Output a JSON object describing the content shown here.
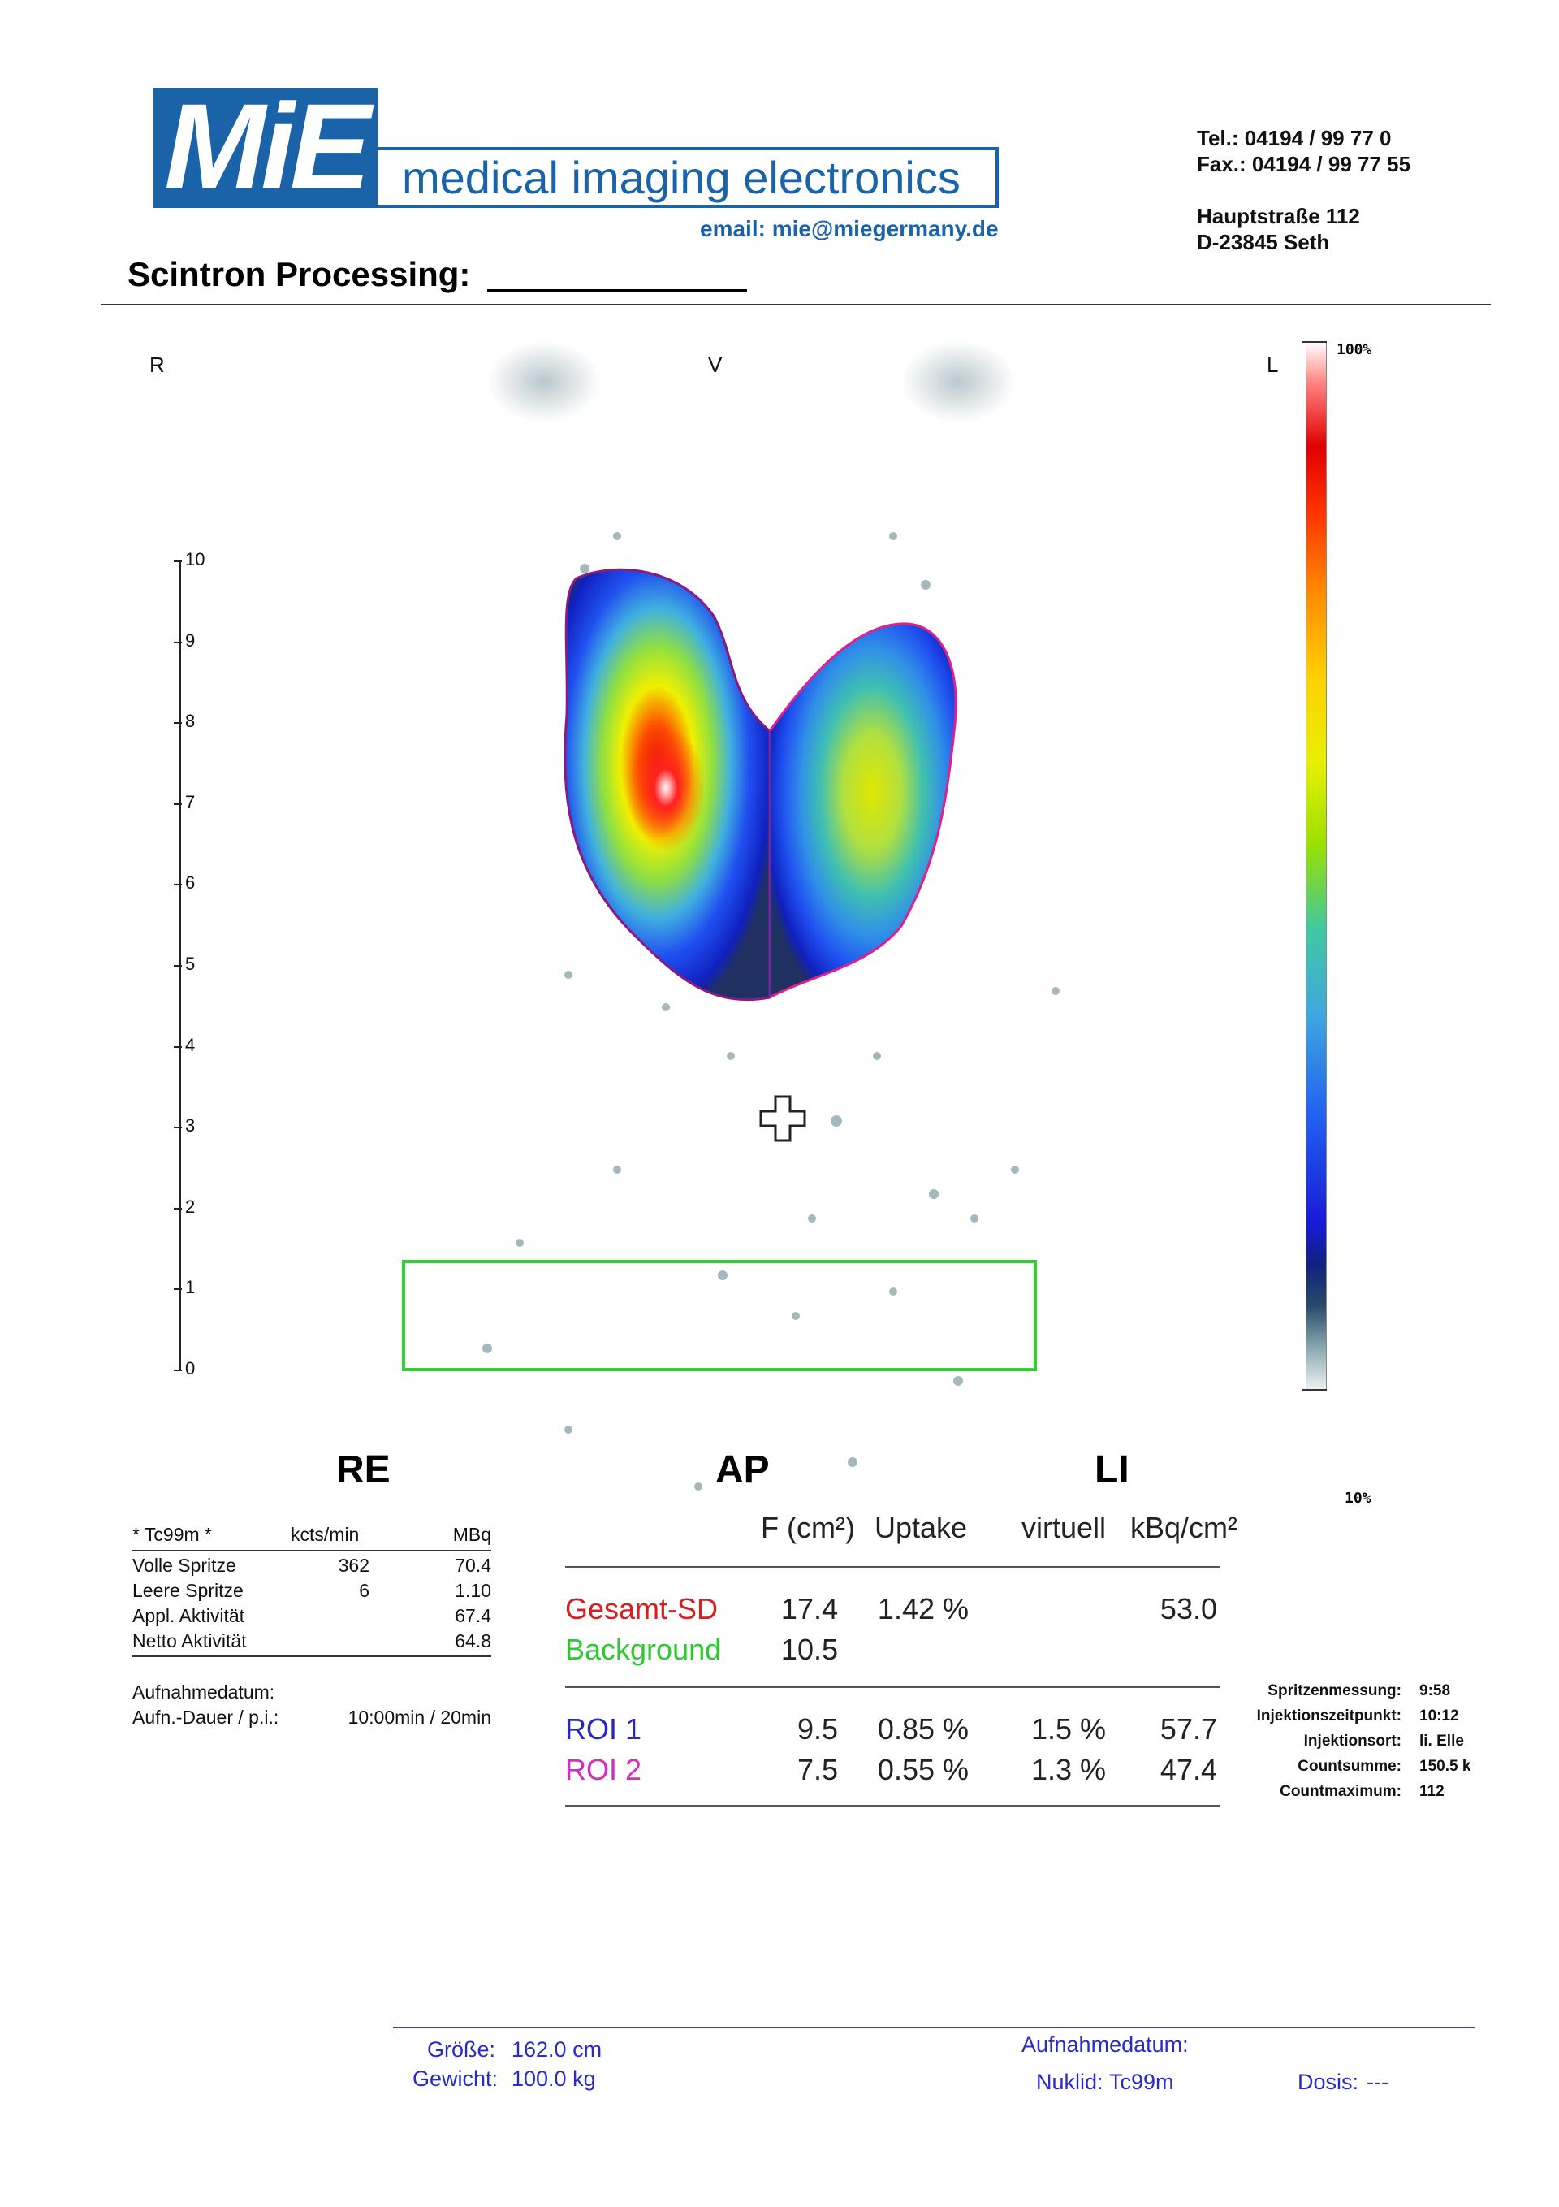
{
  "header": {
    "logo_text": "MiE",
    "tagline": "medical imaging electronics",
    "email": "email: mie@miegermany.de",
    "tel": "Tel.:  04194 / 99 77 0",
    "fax": "Fax.: 04194 / 99 77 55",
    "street": "Hauptstraße 112",
    "city": "D-23845 Seth",
    "title": "Scintron Processing:"
  },
  "image": {
    "orient_right": "R",
    "orient_ventral": "V",
    "orient_left": "L",
    "scale_ticks": [
      "10",
      "9",
      "8",
      "7",
      "6",
      "5",
      "4",
      "3",
      "2",
      "1",
      "0"
    ],
    "colorbar_max": "100%",
    "colorbar_min": "10%"
  },
  "sections": {
    "re": "RE",
    "ap": "AP",
    "li": "LI"
  },
  "left_table": {
    "col_nuclide": "* Tc99m *",
    "col_kcts": "kcts/min",
    "col_mbq": "MBq",
    "rows": [
      {
        "name": "Volle Spritze",
        "kcts": "362",
        "mbq": "70.4"
      },
      {
        "name": "Leere Spritze",
        "kcts": "6",
        "mbq": "1.10"
      },
      {
        "name": "Appl. Aktivität",
        "kcts": "",
        "mbq": "67.4"
      },
      {
        "name": "Netto Aktivität",
        "kcts": "",
        "mbq": "64.8"
      }
    ],
    "aufnahmedatum_label": "Aufnahmedatum:",
    "dauer_label": "Aufn.-Dauer / p.i.:",
    "dauer_value": "10:00min / 20min"
  },
  "mid_table": {
    "h_area": "F (cm²)",
    "h_uptake": "Uptake",
    "h_virtuell": "virtuell",
    "h_kbq": "kBq/cm²",
    "rows1": [
      {
        "name": "Gesamt-SD",
        "color": "#d42020",
        "area": "17.4",
        "uptake": "1.42 %",
        "virtuell": "",
        "kbq": "53.0"
      },
      {
        "name": "Background",
        "color": "#30c830",
        "area": "10.5",
        "uptake": "",
        "virtuell": "",
        "kbq": ""
      }
    ],
    "rows2": [
      {
        "name": "ROI 1",
        "color": "#2828c0",
        "area": "9.5",
        "uptake": "0.85 %",
        "virtuell": "1.5 %",
        "kbq": "57.7"
      },
      {
        "name": "ROI 2",
        "color": "#d030c0",
        "area": "7.5",
        "uptake": "0.55 %",
        "virtuell": "1.3 %",
        "kbq": "47.4"
      }
    ]
  },
  "right_info": [
    {
      "label": "Spritzenmessung:",
      "value": "9:58"
    },
    {
      "label": "Injektionszeitpunkt:",
      "value": "10:12"
    },
    {
      "label": "Injektionsort:",
      "value": "li. Elle"
    },
    {
      "label": "Countsumme:",
      "value": "150.5 k"
    },
    {
      "label": "Countmaximum:",
      "value": "112"
    }
  ],
  "footer": {
    "groesse_label": "Größe:",
    "groesse_value": "162.0 cm",
    "gewicht_label": "Gewicht:",
    "gewicht_value": "100.0 kg",
    "aufnahmedatum_label": "Aufnahmedatum:",
    "nuklid_label": "Nuklid:",
    "nuklid_value": "Tc99m",
    "dosis_label": "Dosis:",
    "dosis_value": "---"
  }
}
